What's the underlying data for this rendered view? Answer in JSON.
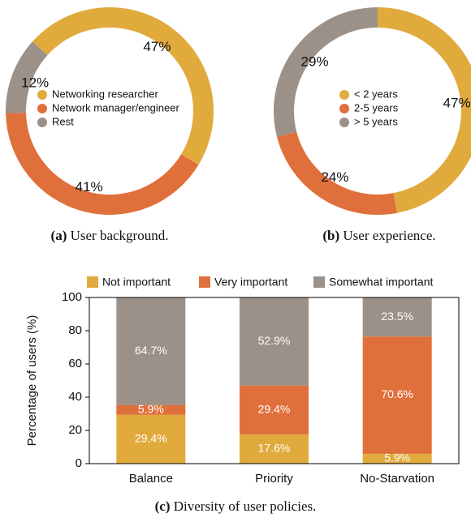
{
  "chart_data": [
    {
      "type": "pie",
      "caption_tag": "(a)",
      "caption": "User background.",
      "categories": [
        "Networking researcher",
        "Network manager/engineer",
        "Rest"
      ],
      "values": [
        47,
        41,
        12
      ],
      "value_labels": [
        "47%",
        "41%",
        "12%"
      ],
      "colors": [
        "#e1aa3d",
        "#e0703b",
        "#9b9189"
      ]
    },
    {
      "type": "pie",
      "caption_tag": "(b)",
      "caption": "User experience.",
      "categories": [
        "< 2 years",
        "2-5 years",
        "> 5 years"
      ],
      "values": [
        47,
        24,
        29
      ],
      "value_labels": [
        "47%",
        "24%",
        "29%"
      ],
      "colors": [
        "#e1aa3d",
        "#e0703b",
        "#9b9189"
      ]
    },
    {
      "type": "bar",
      "caption_tag": "(c)",
      "caption": "Diversity of user policies.",
      "ylabel": "Percentage of users (%)",
      "categories": [
        "Balance",
        "Priority",
        "No-Starvation"
      ],
      "series": [
        {
          "name": "Not important",
          "color": "#e1aa3d",
          "values": [
            29.4,
            17.6,
            5.9
          ],
          "value_labels": [
            "29.4%",
            "17.6%",
            "5.9%"
          ]
        },
        {
          "name": "Very important",
          "color": "#e0703b",
          "values": [
            5.9,
            29.4,
            70.6
          ],
          "value_labels": [
            "5.9%",
            "29.4%",
            "70.6%"
          ]
        },
        {
          "name": "Somewhat important",
          "color": "#9b9189",
          "values": [
            64.7,
            52.9,
            23.5
          ],
          "value_labels": [
            "64.7%",
            "52.9%",
            "23.5%"
          ]
        }
      ],
      "ylim": [
        0,
        100
      ],
      "yticks": [
        0,
        20,
        40,
        60,
        80,
        100
      ]
    }
  ]
}
